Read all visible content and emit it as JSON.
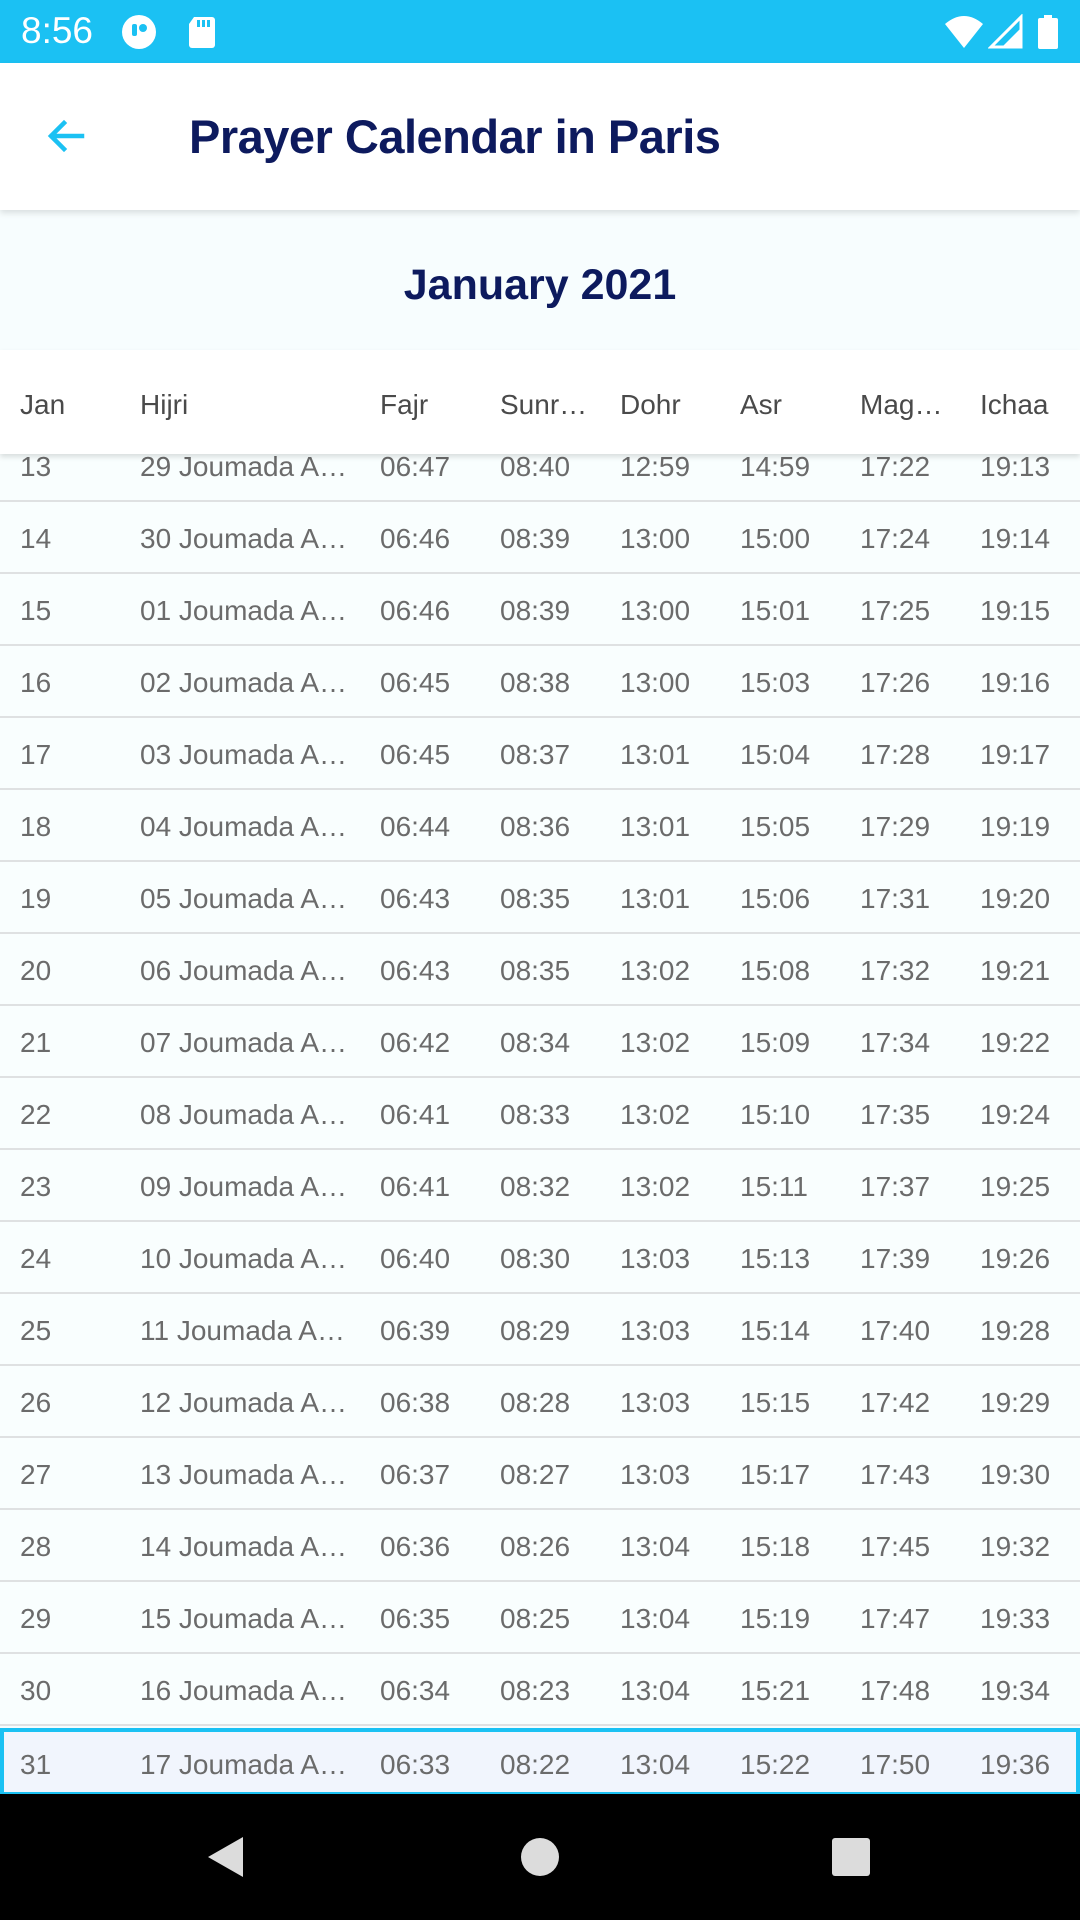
{
  "status_bar": {
    "time": "8:56",
    "icons": [
      "app-notification-icon",
      "sd-card-icon",
      "wifi-icon",
      "signal-icon",
      "battery-icon"
    ]
  },
  "app_bar": {
    "title": "Prayer Calendar in Paris",
    "back_icon": "arrow-left-icon"
  },
  "month": "January 2021",
  "columns": [
    "Jan",
    "Hijri",
    "Fajr",
    "Sunr…",
    "Dohr",
    "Asr",
    "Mag…",
    "Ichaa"
  ],
  "rows": [
    {
      "day": "13",
      "hijri": "29 Joumada A…",
      "fajr": "06:47",
      "sunrise": "08:40",
      "dohr": "12:59",
      "asr": "14:59",
      "maghrib": "17:22",
      "ichaa": "19:13"
    },
    {
      "day": "14",
      "hijri": "30 Joumada A…",
      "fajr": "06:46",
      "sunrise": "08:39",
      "dohr": "13:00",
      "asr": "15:00",
      "maghrib": "17:24",
      "ichaa": "19:14"
    },
    {
      "day": "15",
      "hijri": "01 Joumada A…",
      "fajr": "06:46",
      "sunrise": "08:39",
      "dohr": "13:00",
      "asr": "15:01",
      "maghrib": "17:25",
      "ichaa": "19:15"
    },
    {
      "day": "16",
      "hijri": "02 Joumada A…",
      "fajr": "06:45",
      "sunrise": "08:38",
      "dohr": "13:00",
      "asr": "15:03",
      "maghrib": "17:26",
      "ichaa": "19:16"
    },
    {
      "day": "17",
      "hijri": "03 Joumada A…",
      "fajr": "06:45",
      "sunrise": "08:37",
      "dohr": "13:01",
      "asr": "15:04",
      "maghrib": "17:28",
      "ichaa": "19:17"
    },
    {
      "day": "18",
      "hijri": "04 Joumada A…",
      "fajr": "06:44",
      "sunrise": "08:36",
      "dohr": "13:01",
      "asr": "15:05",
      "maghrib": "17:29",
      "ichaa": "19:19"
    },
    {
      "day": "19",
      "hijri": "05 Joumada A…",
      "fajr": "06:43",
      "sunrise": "08:35",
      "dohr": "13:01",
      "asr": "15:06",
      "maghrib": "17:31",
      "ichaa": "19:20"
    },
    {
      "day": "20",
      "hijri": "06 Joumada A…",
      "fajr": "06:43",
      "sunrise": "08:35",
      "dohr": "13:02",
      "asr": "15:08",
      "maghrib": "17:32",
      "ichaa": "19:21"
    },
    {
      "day": "21",
      "hijri": "07 Joumada A…",
      "fajr": "06:42",
      "sunrise": "08:34",
      "dohr": "13:02",
      "asr": "15:09",
      "maghrib": "17:34",
      "ichaa": "19:22"
    },
    {
      "day": "22",
      "hijri": "08 Joumada A…",
      "fajr": "06:41",
      "sunrise": "08:33",
      "dohr": "13:02",
      "asr": "15:10",
      "maghrib": "17:35",
      "ichaa": "19:24"
    },
    {
      "day": "23",
      "hijri": "09 Joumada A…",
      "fajr": "06:41",
      "sunrise": "08:32",
      "dohr": "13:02",
      "asr": "15:11",
      "maghrib": "17:37",
      "ichaa": "19:25"
    },
    {
      "day": "24",
      "hijri": "10 Joumada A…",
      "fajr": "06:40",
      "sunrise": "08:30",
      "dohr": "13:03",
      "asr": "15:13",
      "maghrib": "17:39",
      "ichaa": "19:26"
    },
    {
      "day": "25",
      "hijri": "11 Joumada A…",
      "fajr": "06:39",
      "sunrise": "08:29",
      "dohr": "13:03",
      "asr": "15:14",
      "maghrib": "17:40",
      "ichaa": "19:28"
    },
    {
      "day": "26",
      "hijri": "12 Joumada A…",
      "fajr": "06:38",
      "sunrise": "08:28",
      "dohr": "13:03",
      "asr": "15:15",
      "maghrib": "17:42",
      "ichaa": "19:29"
    },
    {
      "day": "27",
      "hijri": "13 Joumada A…",
      "fajr": "06:37",
      "sunrise": "08:27",
      "dohr": "13:03",
      "asr": "15:17",
      "maghrib": "17:43",
      "ichaa": "19:30"
    },
    {
      "day": "28",
      "hijri": "14 Joumada A…",
      "fajr": "06:36",
      "sunrise": "08:26",
      "dohr": "13:04",
      "asr": "15:18",
      "maghrib": "17:45",
      "ichaa": "19:32"
    },
    {
      "day": "29",
      "hijri": "15 Joumada A…",
      "fajr": "06:35",
      "sunrise": "08:25",
      "dohr": "13:04",
      "asr": "15:19",
      "maghrib": "17:47",
      "ichaa": "19:33"
    },
    {
      "day": "30",
      "hijri": "16 Joumada A…",
      "fajr": "06:34",
      "sunrise": "08:23",
      "dohr": "13:04",
      "asr": "15:21",
      "maghrib": "17:48",
      "ichaa": "19:34"
    },
    {
      "day": "31",
      "hijri": "17 Joumada A…",
      "fajr": "06:33",
      "sunrise": "08:22",
      "dohr": "13:04",
      "asr": "15:22",
      "maghrib": "17:50",
      "ichaa": "19:36",
      "highlighted": true
    }
  ],
  "nav_bar": {
    "icons": [
      "back-triangle-icon",
      "home-circle-icon",
      "recents-square-icon"
    ]
  },
  "colors": {
    "accent": "#1bc1f3",
    "title": "#0d1a5e",
    "row_text": "#6b6b6b",
    "header_text": "#4a4a4a"
  }
}
